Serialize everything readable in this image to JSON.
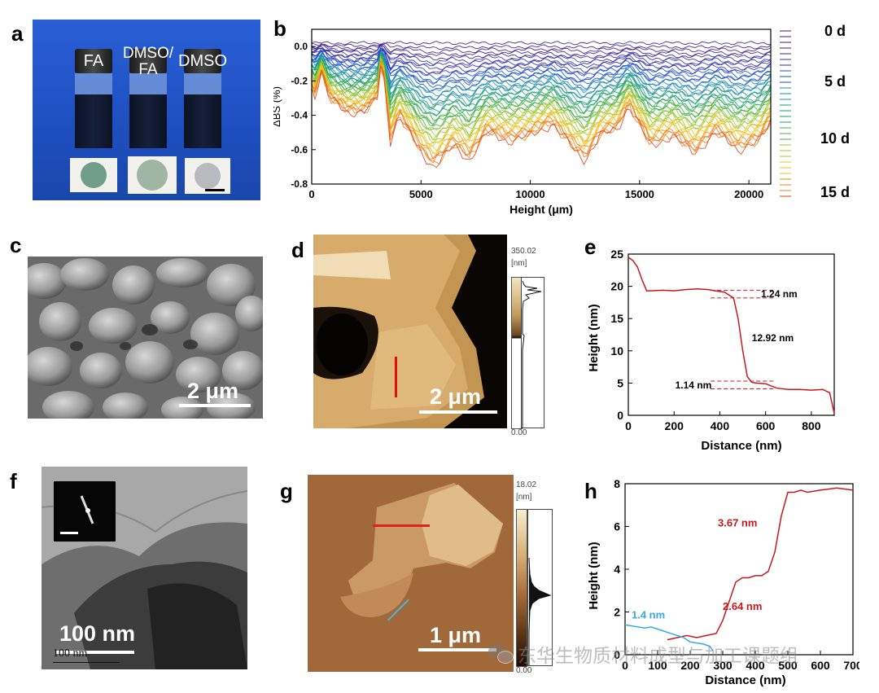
{
  "labels": {
    "a": "a",
    "b": "b",
    "c": "c",
    "d": "d",
    "e": "e",
    "f": "f",
    "g": "g",
    "h": "h"
  },
  "panel_a": {
    "vials": [
      "FA",
      "DMSO/\nFA",
      "DMSO"
    ],
    "vial_bg": "#1d50c0",
    "disk_colors": [
      "#6f9e8a",
      "#9fb6a4",
      "#b9b9c0"
    ]
  },
  "chart_data": [
    {
      "id": "b",
      "type": "line",
      "title": "",
      "xlabel": "Height (μm)",
      "ylabel": "ΔBS (%)",
      "xlim": [
        0,
        21000
      ],
      "ylim": [
        -0.8,
        0.1
      ],
      "xticks": [
        0,
        5000,
        10000,
        15000,
        20000
      ],
      "yticks": [
        0.0,
        -0.2,
        -0.4,
        -0.6,
        -0.8
      ],
      "legend": [
        "0 d",
        "5 d",
        "10 d",
        "15 d"
      ],
      "legend_colors": [
        "#3a1a8c",
        "#1a4fd0",
        "#f0c020",
        "#e0401a"
      ],
      "series_count": 45,
      "profile_x": [
        0,
        200,
        400,
        800,
        1600,
        2400,
        3000,
        3200,
        3600,
        4000,
        5000,
        5600,
        6500,
        7200,
        8000,
        9000,
        10000,
        11000,
        12000,
        12500,
        13200,
        14000,
        14500,
        15500,
        16500,
        17500,
        18500,
        19500,
        20500,
        21000
      ],
      "profile_final": [
        -0.24,
        -0.3,
        -0.12,
        -0.3,
        -0.38,
        -0.38,
        -0.3,
        -0.05,
        -0.55,
        -0.4,
        -0.62,
        -0.7,
        -0.58,
        -0.66,
        -0.5,
        -0.55,
        -0.52,
        -0.45,
        -0.6,
        -0.66,
        -0.52,
        -0.48,
        -0.34,
        -0.58,
        -0.52,
        -0.62,
        -0.5,
        -0.6,
        -0.55,
        -0.44
      ]
    },
    {
      "id": "e",
      "type": "line",
      "xlabel": "Distance (nm)",
      "ylabel": "Height (nm)",
      "xlim": [
        0,
        900
      ],
      "ylim": [
        0,
        25
      ],
      "xticks": [
        0,
        200,
        400,
        600,
        800
      ],
      "yticks": [
        0,
        5,
        10,
        15,
        20,
        25
      ],
      "x": [
        0,
        20,
        40,
        60,
        80,
        100,
        150,
        200,
        250,
        300,
        350,
        380,
        420,
        460,
        480,
        500,
        520,
        540,
        560,
        600,
        650,
        700,
        750,
        800,
        850,
        880,
        900
      ],
      "y": [
        24.5,
        24,
        23,
        21,
        19.3,
        19.3,
        19.4,
        19.3,
        19.5,
        19.6,
        19.5,
        19.3,
        19.1,
        18.2,
        15,
        10,
        6,
        5.1,
        5,
        4.9,
        4.2,
        4.0,
        4.0,
        3.9,
        4.0,
        3.5,
        0.3
      ],
      "annotations": [
        "1.24 nm",
        "12.92 nm",
        "1.14 nm"
      ]
    },
    {
      "id": "h",
      "type": "line",
      "xlabel": "Distance (nm)",
      "ylabel": "Height (nm)",
      "xlim": [
        0,
        700
      ],
      "ylim": [
        0,
        8
      ],
      "xticks": [
        0,
        100,
        200,
        300,
        400,
        500,
        600,
        700
      ],
      "yticks": [
        0,
        2,
        4,
        6,
        8
      ],
      "series": [
        {
          "name": "red",
          "color": "#c8181c",
          "x": [
            130,
            160,
            190,
            220,
            250,
            280,
            300,
            320,
            340,
            360,
            380,
            400,
            420,
            440,
            460,
            480,
            500,
            520,
            540,
            560,
            600,
            650,
            700
          ],
          "y": [
            0.7,
            0.8,
            0.9,
            0.8,
            0.9,
            1.0,
            1.6,
            2.5,
            3.4,
            3.6,
            3.6,
            3.7,
            3.7,
            3.9,
            4.8,
            6.5,
            7.6,
            7.6,
            7.7,
            7.6,
            7.7,
            7.8,
            7.7
          ]
        },
        {
          "name": "blue",
          "color": "#3ba9e0",
          "x": [
            0,
            20,
            40,
            60,
            80,
            100,
            120,
            140,
            160,
            180,
            200,
            220,
            240,
            260,
            270
          ],
          "y": [
            1.4,
            1.35,
            1.3,
            1.25,
            1.3,
            1.2,
            1.1,
            1.0,
            0.9,
            0.8,
            0.6,
            0.55,
            0.5,
            0.4,
            0.2
          ]
        }
      ],
      "annotations": [
        "1.4 nm",
        "2.64 nm",
        "3.67 nm"
      ]
    }
  ],
  "panel_c": {
    "scale": "2 μm"
  },
  "panel_d": {
    "scale": "2 μm",
    "cb_top": "350.02",
    "cb_unit": "[nm]",
    "cb_bottom": "0.00"
  },
  "panel_f": {
    "scale": "100 nm",
    "scale_small": "100 nm"
  },
  "panel_g": {
    "scale": "1 μm",
    "cb_top": "18.02",
    "cb_unit": "[nm]",
    "cb_bottom": "0.00"
  },
  "watermark": "东华生物质材料成型与加工课题组"
}
